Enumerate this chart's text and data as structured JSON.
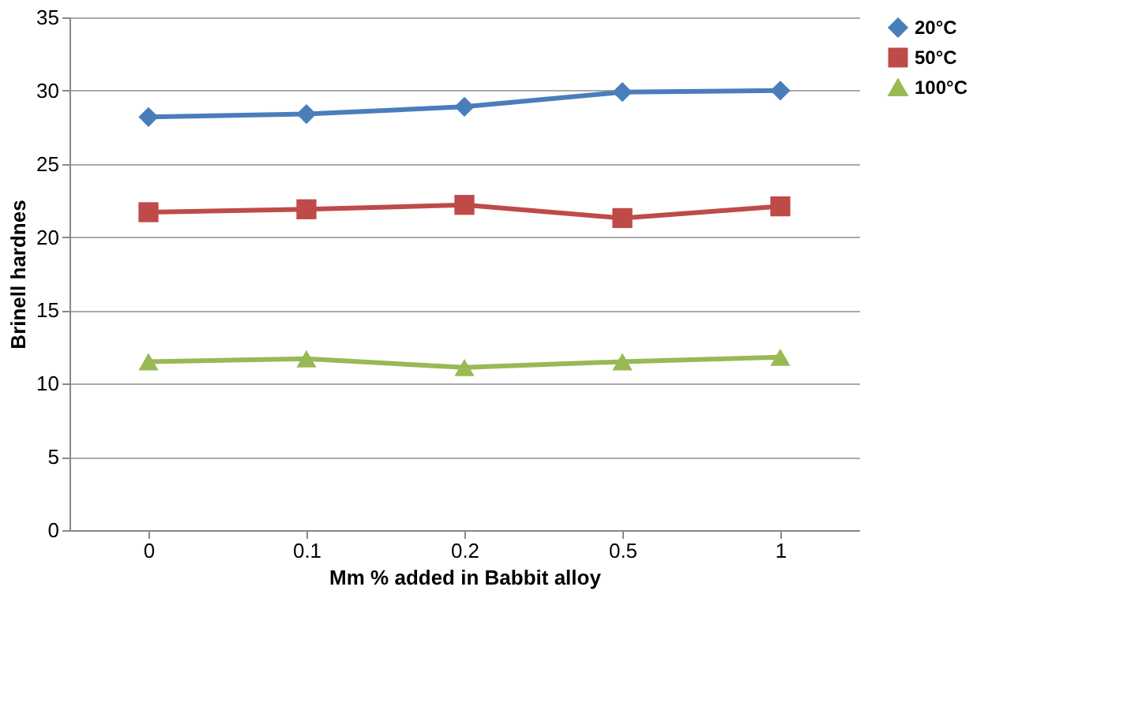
{
  "chart_data": {
    "type": "line",
    "xlabel": "Mm  % added in Babbit alloy",
    "ylabel": "Brinell hardnes",
    "categories": [
      "0",
      "0.1",
      "0.2",
      "0.5",
      "1"
    ],
    "series": [
      {
        "name": "20°C",
        "color": "#4a7ebb",
        "marker": "diamond",
        "values": [
          28.2,
          28.4,
          28.9,
          29.9,
          30.0
        ]
      },
      {
        "name": "50°C",
        "color": "#be4b48",
        "marker": "square",
        "values": [
          21.7,
          21.9,
          22.2,
          21.3,
          22.1
        ]
      },
      {
        "name": "100°C",
        "color": "#98b954",
        "marker": "triangle",
        "values": [
          11.5,
          11.7,
          11.1,
          11.5,
          11.8
        ]
      }
    ],
    "ylim": [
      0,
      35
    ],
    "yticks": [
      0,
      5,
      10,
      15,
      20,
      25,
      30,
      35
    ],
    "grid": "y",
    "legend": "right",
    "line_style": "solid"
  }
}
